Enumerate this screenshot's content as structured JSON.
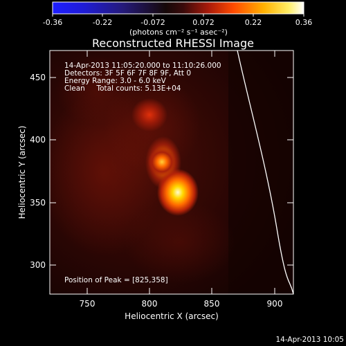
{
  "colorbar": {
    "ticks": [
      "-0.36",
      "-0.22",
      "-0.072",
      "0.072",
      "0.22",
      "0.36"
    ],
    "unit_label": "(photons cm⁻² s⁻¹ asec⁻²)"
  },
  "title": "Reconstructed RHESSI Image",
  "annotations": {
    "line1": "14-Apr-2013 11:05:20.000 to 11:10:26.000",
    "line2": "Detectors: 3F 5F 6F 7F 8F 9F, Att 0",
    "line3": "Energy Range: 3.0 - 6.0 keV",
    "line4": "Clean     Total counts: 5.13E+04",
    "peak": "Position of Peak = [825,358]"
  },
  "axes": {
    "xlabel": "Heliocentric X (arcsec)",
    "ylabel": "Heliocentric Y (arcsec)",
    "xticks": [
      "750",
      "800",
      "850",
      "900"
    ],
    "yticks": [
      "300",
      "350",
      "400",
      "450"
    ]
  },
  "footer_timestamp": "14-Apr-2013 10:05",
  "colors": {
    "background": "#000000",
    "limb_line": "#ffffff"
  }
}
